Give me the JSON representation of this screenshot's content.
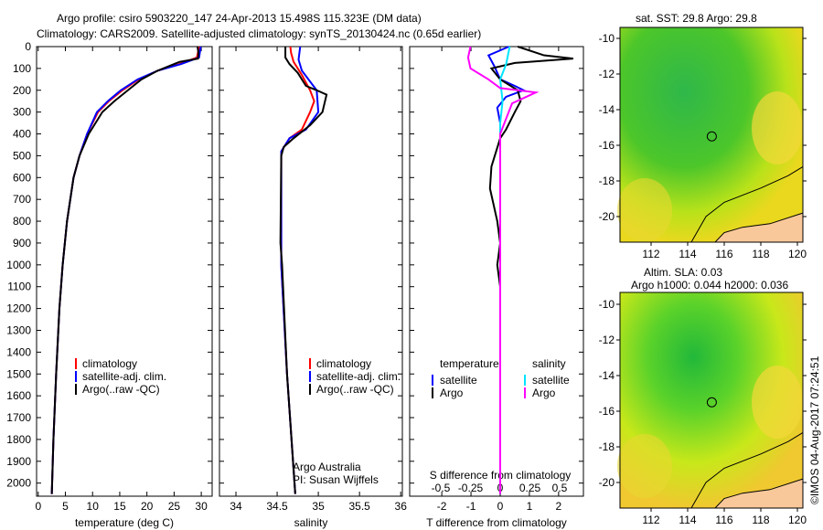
{
  "title_line1": "Argo profile: csiro 5903220_147 24-Apr-2013 15.498S 115.323E (DM data)",
  "title_line2": "Climatology: CARS2009. Satellite-adjusted climatology: synTS_20130424.nc (0.65d earlier)",
  "credit": "©IMOS 04-Aug-2017 07:24:51",
  "colors": {
    "climatology": "#ff0000",
    "satellite": "#0000ff",
    "argo": "#000000",
    "sal_satellite": "#00e5ff",
    "sal_argo": "#ff00ff",
    "land": "#f9c89a"
  },
  "chart_data": [
    {
      "type": "line",
      "name": "temperature",
      "xlabel": "temperature (deg C)",
      "ylabel": "",
      "xlim": [
        -0.3,
        32
      ],
      "ylim": [
        2060,
        0
      ],
      "xticks": [
        0,
        5,
        10,
        15,
        20,
        25,
        30
      ],
      "yticks": [
        0,
        100,
        200,
        300,
        400,
        500,
        600,
        700,
        800,
        900,
        1000,
        1100,
        1200,
        1300,
        1400,
        1500,
        1600,
        1700,
        1800,
        1900,
        2000
      ],
      "legend": [
        "climatology",
        "satellite-adj. clim.",
        "Argo(..raw -QC)"
      ],
      "series": [
        {
          "name": "climatology",
          "color": "#ff0000",
          "points": [
            [
              29.6,
              0
            ],
            [
              29.2,
              50
            ],
            [
              26,
              80
            ],
            [
              22,
              110
            ],
            [
              18.5,
              150
            ],
            [
              15.5,
              200
            ],
            [
              13,
              250
            ],
            [
              11,
              300
            ],
            [
              9,
              400
            ],
            [
              7.6,
              500
            ],
            [
              6.5,
              600
            ],
            [
              5.3,
              800
            ],
            [
              4.5,
              1000
            ],
            [
              3.9,
              1200
            ],
            [
              3.3,
              1500
            ],
            [
              2.8,
              1800
            ],
            [
              2.5,
              2050
            ]
          ]
        },
        {
          "name": "satellite-adj. clim.",
          "color": "#0000ff",
          "points": [
            [
              29.9,
              0
            ],
            [
              29.6,
              50
            ],
            [
              26.3,
              80
            ],
            [
              22,
              110
            ],
            [
              18.3,
              150
            ],
            [
              15.2,
              200
            ],
            [
              12.8,
              250
            ],
            [
              10.8,
              300
            ],
            [
              9,
              400
            ],
            [
              7.6,
              500
            ],
            [
              6.5,
              600
            ],
            [
              5.3,
              800
            ],
            [
              4.5,
              1000
            ],
            [
              3.9,
              1200
            ],
            [
              3.3,
              1500
            ],
            [
              2.8,
              1800
            ],
            [
              2.5,
              2050
            ]
          ]
        },
        {
          "name": "Argo(..raw -QC)",
          "color": "#000000",
          "points": [
            [
              29.3,
              0
            ],
            [
              29.5,
              30
            ],
            [
              29.4,
              55
            ],
            [
              26,
              70
            ],
            [
              22,
              110
            ],
            [
              19,
              150
            ],
            [
              16.5,
              200
            ],
            [
              14,
              250
            ],
            [
              11.8,
              300
            ],
            [
              9.3,
              400
            ],
            [
              7.6,
              500
            ],
            [
              6.5,
              600
            ],
            [
              5.3,
              800
            ],
            [
              4.5,
              1000
            ],
            [
              3.9,
              1200
            ],
            [
              3.3,
              1500
            ],
            [
              2.8,
              1800
            ],
            [
              2.5,
              2050
            ]
          ]
        }
      ]
    },
    {
      "type": "line",
      "name": "salinity",
      "xlabel": "salinity",
      "xlim": [
        33.8,
        36.02
      ],
      "ylim": [
        2060,
        0
      ],
      "xticks": [
        34,
        34.5,
        35,
        35.5,
        36
      ],
      "legend": [
        "climatology",
        "satellite-adj. clim.",
        "Argo(..raw -QC)"
      ],
      "annotation": [
        "Argo Australia",
        "PI: Susan Wijffels"
      ],
      "series": [
        {
          "name": "climatology",
          "color": "#ff0000",
          "points": [
            [
              34.66,
              0
            ],
            [
              34.67,
              30
            ],
            [
              34.7,
              70
            ],
            [
              34.8,
              130
            ],
            [
              34.9,
              200
            ],
            [
              34.95,
              250
            ],
            [
              34.9,
              300
            ],
            [
              34.8,
              380
            ],
            [
              34.65,
              420
            ],
            [
              34.55,
              480
            ],
            [
              34.55,
              1000
            ],
            [
              34.62,
              1500
            ],
            [
              34.72,
              2050
            ]
          ]
        },
        {
          "name": "satellite-adj. clim.",
          "color": "#0000ff",
          "points": [
            [
              34.78,
              0
            ],
            [
              34.76,
              60
            ],
            [
              34.8,
              110
            ],
            [
              34.9,
              160
            ],
            [
              34.98,
              200
            ],
            [
              35.0,
              300
            ],
            [
              34.85,
              380
            ],
            [
              34.65,
              420
            ],
            [
              34.55,
              480
            ],
            [
              34.55,
              1000
            ],
            [
              34.62,
              1500
            ],
            [
              34.72,
              2050
            ]
          ]
        },
        {
          "name": "Argo(..raw -QC)",
          "color": "#000000",
          "points": [
            [
              34.6,
              0
            ],
            [
              34.6,
              50
            ],
            [
              34.65,
              80
            ],
            [
              34.75,
              120
            ],
            [
              34.85,
              180
            ],
            [
              34.98,
              200
            ],
            [
              35.1,
              220
            ],
            [
              35.05,
              300
            ],
            [
              34.9,
              360
            ],
            [
              34.7,
              420
            ],
            [
              34.58,
              460
            ],
            [
              34.55,
              500
            ],
            [
              34.54,
              900
            ],
            [
              34.56,
              1000
            ],
            [
              34.62,
              1500
            ],
            [
              34.72,
              2050
            ]
          ]
        }
      ]
    },
    {
      "type": "line",
      "name": "difference",
      "xlabel": "T difference from climatology",
      "x2label": "S difference from climatology",
      "xlim": [
        -3.1,
        2.85
      ],
      "ylim": [
        2060,
        0
      ],
      "xticks": [
        -2,
        -1,
        0,
        1,
        2
      ],
      "x2ticks": [
        -0.5,
        -0.25,
        0,
        0.25,
        0.5
      ],
      "legend": {
        "temperature_title": "temperature",
        "salinity_title": "salinity",
        "items": [
          "satellite",
          "Argo",
          "satellite",
          "Argo"
        ]
      },
      "series": [
        {
          "name": "T satellite",
          "color": "#0000ff",
          "axis": "T",
          "points": [
            [
              0.3,
              0
            ],
            [
              -0.4,
              40
            ],
            [
              -0.2,
              90
            ],
            [
              0,
              150
            ],
            [
              0.5,
              180
            ],
            [
              0.8,
              200
            ],
            [
              0.2,
              230
            ],
            [
              -0.1,
              280
            ],
            [
              0,
              350
            ],
            [
              0,
              2050
            ]
          ]
        },
        {
          "name": "T Argo",
          "color": "#000000",
          "axis": "T",
          "points": [
            [
              0.6,
              0
            ],
            [
              1.5,
              40
            ],
            [
              2.5,
              55
            ],
            [
              0.5,
              75
            ],
            [
              -0.3,
              100
            ],
            [
              0,
              150
            ],
            [
              0.6,
              200
            ],
            [
              0.7,
              250
            ],
            [
              0.5,
              300
            ],
            [
              0.2,
              380
            ],
            [
              0,
              420
            ],
            [
              -0.3,
              550
            ],
            [
              -0.35,
              650
            ],
            [
              -0.1,
              800
            ],
            [
              0,
              900
            ],
            [
              -0.1,
              1000
            ],
            [
              0,
              1100
            ],
            [
              0,
              2050
            ]
          ]
        },
        {
          "name": "S satellite",
          "color": "#00e5ff",
          "axis": "S",
          "points": [
            [
              0.08,
              0
            ],
            [
              0.05,
              80
            ],
            [
              0,
              150
            ],
            [
              0.02,
              250
            ],
            [
              0,
              350
            ],
            [
              0,
              2050
            ]
          ]
        },
        {
          "name": "S Argo",
          "color": "#ff00ff",
          "axis": "S",
          "points": [
            [
              -0.25,
              0
            ],
            [
              -0.27,
              50
            ],
            [
              -0.25,
              100
            ],
            [
              -0.1,
              150
            ],
            [
              0,
              190
            ],
            [
              0.3,
              210
            ],
            [
              0.1,
              260
            ],
            [
              0.05,
              330
            ],
            [
              0,
              400
            ],
            [
              0,
              2050
            ]
          ]
        }
      ]
    }
  ],
  "maps": [
    {
      "title": "sat. SST: 29.8  Argo: 29.8",
      "lat_ticks": [
        -10,
        -12,
        -14,
        -16,
        -18,
        -20
      ],
      "lon_ticks": [
        112,
        114,
        116,
        118,
        120
      ],
      "marker": [
        115.32,
        -15.5
      ]
    },
    {
      "title_line1": "Altim. SLA: 0.03",
      "title_line2": "Argo h1000: 0.044 h2000: 0.036",
      "lat_ticks": [
        -10,
        -12,
        -14,
        -16,
        -18,
        -20
      ],
      "lon_ticks": [
        112,
        114,
        116,
        118,
        120
      ],
      "marker": [
        115.32,
        -15.5
      ]
    }
  ]
}
